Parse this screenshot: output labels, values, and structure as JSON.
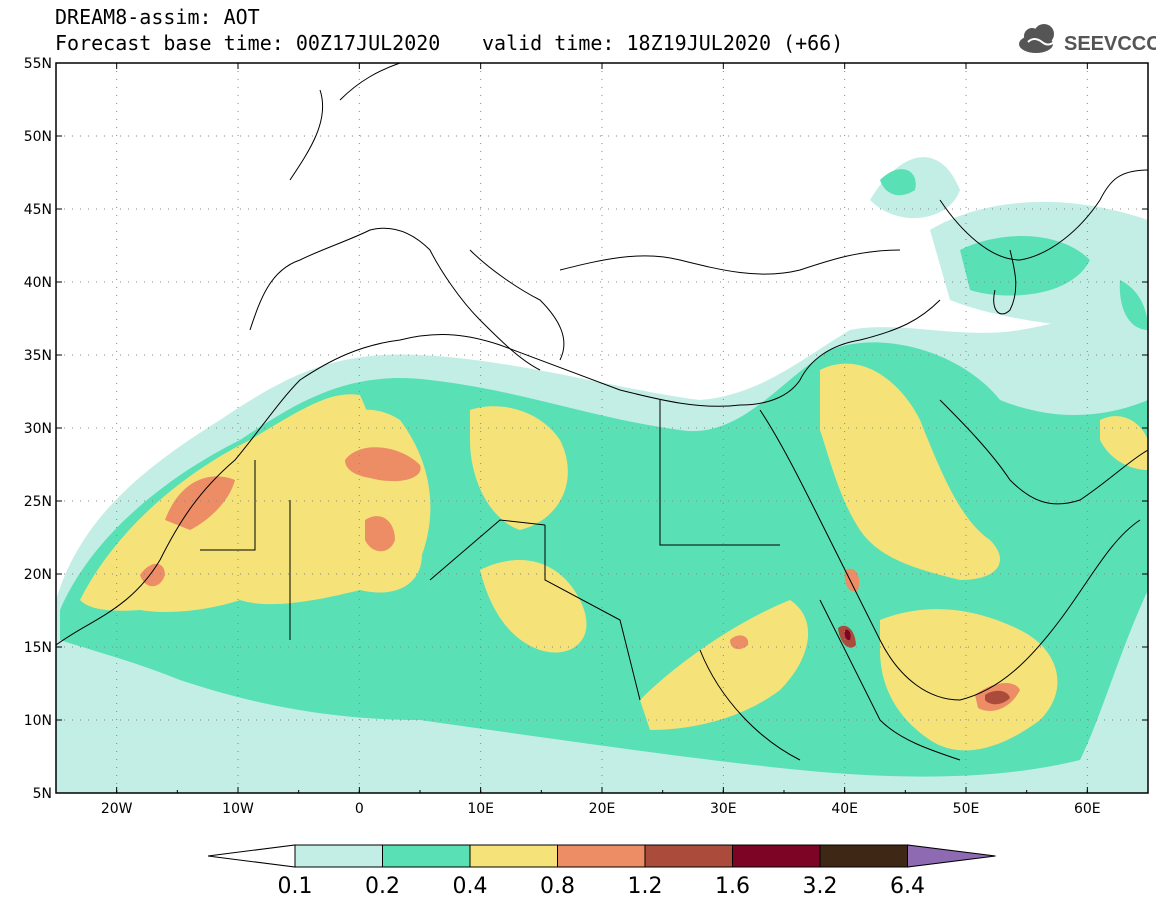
{
  "header": {
    "title": "DREAM8-assim: AOT",
    "base_time": "Forecast base time: 00Z17JUL2020",
    "valid_time": "valid time: 18Z19JUL2020 (+66)"
  },
  "logo": {
    "text": "SEEVCCC",
    "icon": "cloud-icon"
  },
  "map": {
    "lon_range": [
      -25,
      65
    ],
    "lat_range": [
      5,
      55
    ],
    "lat_ticks": [
      "5N",
      "10N",
      "15N",
      "20N",
      "25N",
      "30N",
      "35N",
      "40N",
      "45N",
      "50N",
      "55N"
    ],
    "lon_ticks": [
      "20W",
      "10W",
      "0",
      "10E",
      "20E",
      "30E",
      "40E",
      "50E",
      "60E"
    ],
    "grid": "dotted"
  },
  "colorbar": {
    "colors": [
      "#ffffff",
      "#c3eee6",
      "#5ae0b5",
      "#f5e37a",
      "#ec8d66",
      "#aa4b3b",
      "#7d0425",
      "#3f2716",
      "#8e6ab2"
    ],
    "labels": [
      "0.1",
      "0.2",
      "0.4",
      "0.8",
      "1.2",
      "1.6",
      "3.2",
      "6.4"
    ]
  }
}
